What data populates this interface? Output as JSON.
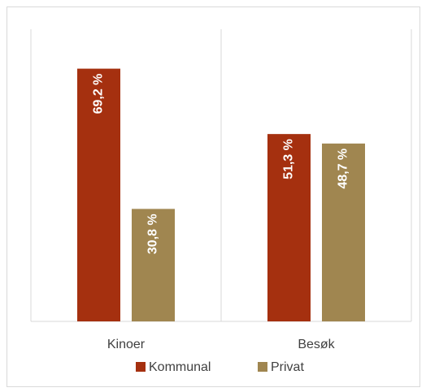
{
  "chart_data": {
    "type": "bar",
    "categories": [
      "Kinoer",
      "Besøk"
    ],
    "series": [
      {
        "name": "Kommunal",
        "color": "#a5300f",
        "values": [
          69.2,
          51.3
        ],
        "value_labels": [
          "69,2 %",
          "51,3 %"
        ]
      },
      {
        "name": "Privat",
        "color": "#a08650",
        "values": [
          30.8,
          48.7
        ],
        "value_labels": [
          "30,8 %",
          "48,7 %"
        ]
      }
    ],
    "ylim": [
      0,
      80
    ],
    "legend": "bottom"
  }
}
